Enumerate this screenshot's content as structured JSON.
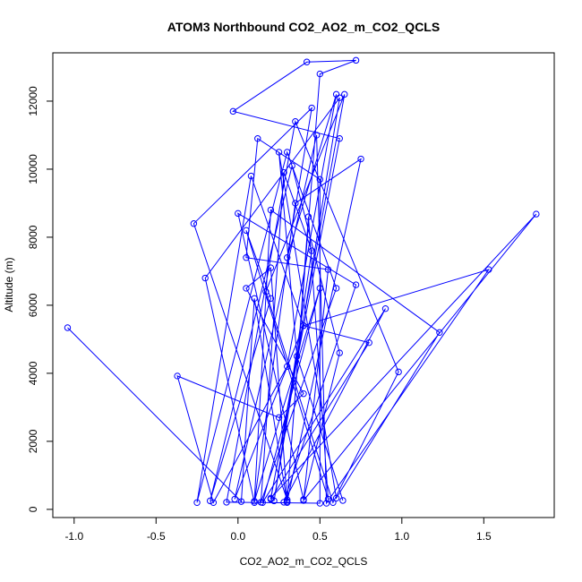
{
  "chart_data": {
    "type": "line",
    "title": "ATOM3 Northbound CO2_AO2_m_CO2_QCLS",
    "xlabel": "CO2_AO2_m_CO2_QCLS",
    "ylabel": "Altitude (m)",
    "xlim": [
      -1.13,
      1.93
    ],
    "ylim": [
      -240,
      13420
    ],
    "xticks": [
      -1.0,
      -0.5,
      0.0,
      0.5,
      1.0,
      1.5
    ],
    "xtick_labels": [
      "-1.0",
      "-0.5",
      "0.0",
      "0.5",
      "1.0",
      "1.5"
    ],
    "yticks": [
      0,
      2000,
      4000,
      6000,
      8000,
      10000,
      12000
    ],
    "ytick_labels": [
      "0",
      "2000",
      "4000",
      "6000",
      "8000",
      "10000",
      "12000"
    ],
    "grid": false,
    "legend": "none",
    "marker": "open-circle",
    "color": "#0000ff",
    "series": [
      {
        "x": [
          -1.04,
          0.02,
          0.1,
          0.3,
          0.2,
          0.05,
          0.4,
          0.25,
          -0.37,
          -0.15,
          0.3,
          0.6,
          0.3,
          0.45,
          -0.27,
          0.3,
          0.5,
          0.72,
          0.42,
          -0.03,
          0.62,
          0.2,
          1.82,
          0.4,
          0.55,
          0.05,
          0.12,
          0.5,
          0.5,
          -0.07,
          0.35,
          0.98,
          0.58,
          0.17,
          0.65,
          0.2,
          0.8,
          0.4,
          1.53,
          0.54,
          0.48,
          -0.02,
          0.4,
          0.08,
          -0.25,
          0.3,
          0.6,
          0.14,
          0.28,
          0.45,
          0.22,
          0.62,
          -0.2,
          0.1,
          0.35,
          0.75,
          0.3,
          0.43,
          0.55,
          0.05,
          0.2,
          -0.17,
          0.33,
          0.62,
          0.4,
          0.0,
          0.72,
          0.28,
          0.9,
          0.15,
          0.5,
          0.1,
          0.2,
          1.23,
          0.6,
          0.25,
          0.36,
          0.64
        ],
        "y": [
          5340,
          230,
          6200,
          200,
          7100,
          6500,
          3400,
          2700,
          3920,
          200,
          4200,
          12200,
          7400,
          11800,
          8400,
          280,
          12800,
          13200,
          13150,
          11700,
          10900,
          330,
          8680,
          260,
          7050,
          7400,
          10900,
          9700,
          180,
          210,
          11400,
          4040,
          200,
          6400,
          12200,
          300,
          4900,
          5400,
          7050,
          180,
          11000,
          300,
          5400,
          9800,
          200,
          10500,
          6500,
          210,
          9900,
          7600,
          250,
          12100,
          6800,
          200,
          9000,
          10300,
          230,
          8600,
          300,
          8200,
          6200,
          250,
          10100,
          4600,
          290,
          8700,
          6600,
          210,
          5900,
          200,
          6500,
          240,
          8800,
          5200,
          330,
          10500,
          4500,
          260
        ]
      }
    ]
  }
}
